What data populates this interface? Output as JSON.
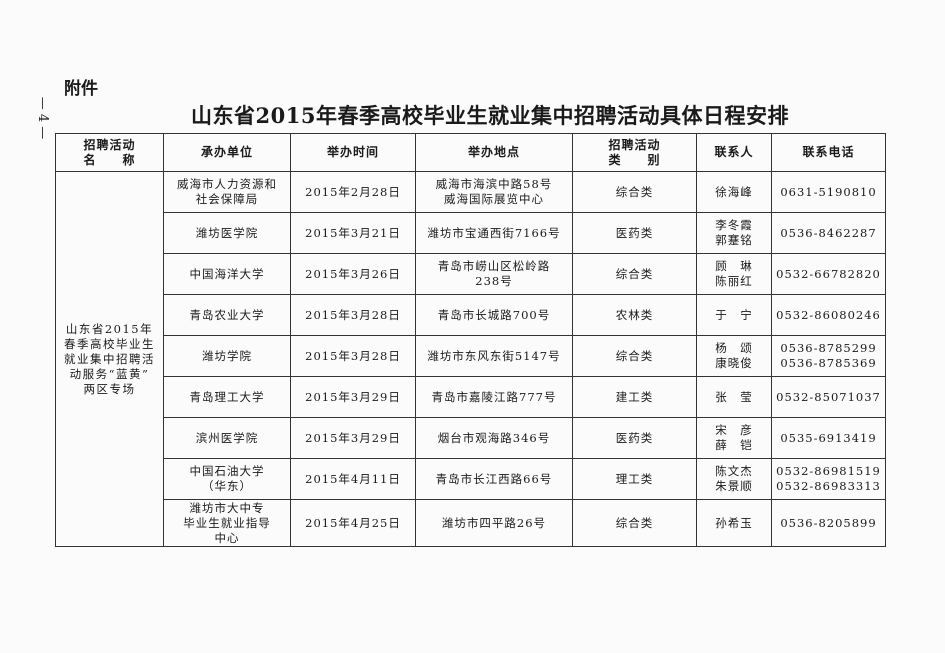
{
  "attachment_label": "附件",
  "page_number": "— 4 —",
  "title": "山东省2015年春季高校毕业生就业集中招聘活动具体日程安排",
  "headers": [
    [
      "招聘活动",
      "名　　称"
    ],
    [
      "承办单位"
    ],
    [
      "举办时间"
    ],
    [
      "举办地点"
    ],
    [
      "招聘活动",
      "类　　别"
    ],
    [
      "联系人"
    ],
    [
      "联系电话"
    ]
  ],
  "event_name": [
    "山东省2015年",
    "春季高校毕业生",
    "就业集中招聘活",
    "动服务“蓝黄”",
    "两区专场"
  ],
  "rows": [
    {
      "org": [
        "威海市人力资源和",
        "社会保障局"
      ],
      "date": "2015年2月28日",
      "place": [
        "威海市海滨中路58号",
        "威海国际展览中心"
      ],
      "type": "综合类",
      "contact": [
        "徐海峰"
      ],
      "phone": [
        "0631-5190810"
      ]
    },
    {
      "org": [
        "潍坊医学院"
      ],
      "date": "2015年3月21日",
      "place": [
        "潍坊市宝通西街7166号"
      ],
      "type": "医药类",
      "contact": [
        "李冬霞",
        "郭蹇铭"
      ],
      "phone": [
        "0536-8462287"
      ]
    },
    {
      "org": [
        "中国海洋大学"
      ],
      "date": "2015年3月26日",
      "place": [
        "青岛市崂山区松岭路",
        "238号"
      ],
      "type": "综合类",
      "contact": [
        "顾　琳",
        "陈丽红"
      ],
      "phone": [
        "0532-66782820"
      ]
    },
    {
      "org": [
        "青岛农业大学"
      ],
      "date": "2015年3月28日",
      "place": [
        "青岛市长城路700号"
      ],
      "type": "农林类",
      "contact": [
        "于　宁"
      ],
      "phone": [
        "0532-86080246"
      ]
    },
    {
      "org": [
        "潍坊学院"
      ],
      "date": "2015年3月28日",
      "place": [
        "潍坊市东风东街5147号"
      ],
      "type": "综合类",
      "contact": [
        "杨　颂",
        "康晓俊"
      ],
      "phone": [
        "0536-8785299",
        "0536-8785369"
      ]
    },
    {
      "org": [
        "青岛理工大学"
      ],
      "date": "2015年3月29日",
      "place": [
        "青岛市嘉陵江路777号"
      ],
      "type": "建工类",
      "contact": [
        "张　莹"
      ],
      "phone": [
        "0532-85071037"
      ]
    },
    {
      "org": [
        "滨州医学院"
      ],
      "date": "2015年3月29日",
      "place": [
        "烟台市观海路346号"
      ],
      "type": "医药类",
      "contact": [
        "宋　彦",
        "薛　铠"
      ],
      "phone": [
        "0535-6913419"
      ]
    },
    {
      "org": [
        "中国石油大学",
        "（华东）"
      ],
      "date": "2015年4月11日",
      "place": [
        "青岛市长江西路66号"
      ],
      "type": "理工类",
      "contact": [
        "陈文杰",
        "朱景顺"
      ],
      "phone": [
        "0532-86981519",
        "0532-86983313"
      ]
    },
    {
      "org": [
        "潍坊市大中专",
        "毕业生就业指导",
        "中心"
      ],
      "date": "2015年4月25日",
      "place": [
        "潍坊市四平路26号"
      ],
      "type": "综合类",
      "contact": [
        "孙希玉"
      ],
      "phone": [
        "0536-8205899"
      ]
    }
  ]
}
